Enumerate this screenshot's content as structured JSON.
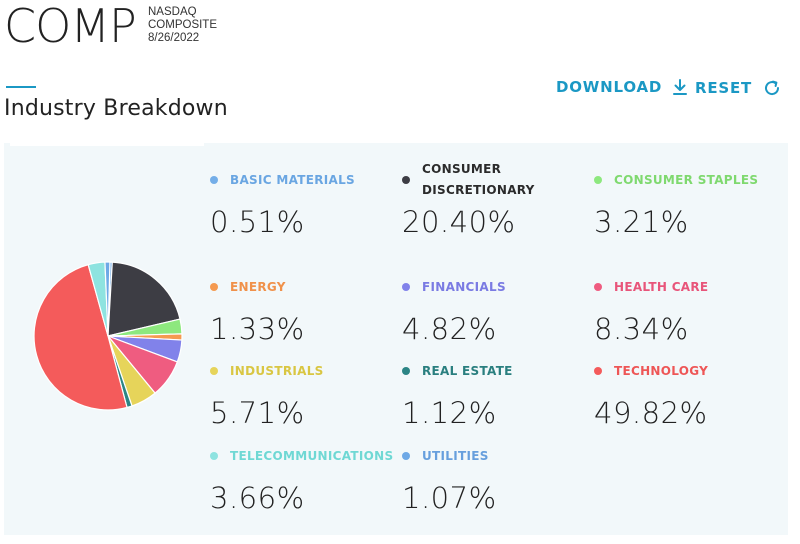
{
  "header": {
    "ticker": "COMP",
    "index_name_line1": "NASDAQ",
    "index_name_line2": "COMPOSITE",
    "date": "8/26/2022"
  },
  "section": {
    "title": "Industry Breakdown"
  },
  "actions": {
    "download_label": "DOWNLOAD",
    "reset_label": "RESET",
    "accent_color": "#1b98c4"
  },
  "chart_data": {
    "type": "pie",
    "title": "Industry Breakdown",
    "unit": "%",
    "slices": [
      {
        "label": "BASIC MATERIALS",
        "value": 0.51,
        "display": "0.51%",
        "color": "#74aee8",
        "label_color": "#6aa6e2"
      },
      {
        "label": "CONSUMER DISCRETIONARY",
        "value": 20.4,
        "display": "20.40%",
        "color": "#3d3d44",
        "label_color": "#2b2b2b"
      },
      {
        "label": "CONSUMER STAPLES",
        "value": 3.21,
        "display": "3.21%",
        "color": "#8de87e",
        "label_color": "#7fd96f"
      },
      {
        "label": "ENERGY",
        "value": 1.33,
        "display": "1.33%",
        "color": "#f59a50",
        "label_color": "#f0914a"
      },
      {
        "label": "FINANCIALS",
        "value": 4.82,
        "display": "4.82%",
        "color": "#8182ea",
        "label_color": "#7a7be3"
      },
      {
        "label": "HEALTH CARE",
        "value": 8.34,
        "display": "8.34%",
        "color": "#ef5c80",
        "label_color": "#e8557a"
      },
      {
        "label": "INDUSTRIALS",
        "value": 5.71,
        "display": "5.71%",
        "color": "#e6d45a",
        "label_color": "#d9c642"
      },
      {
        "label": "REAL ESTATE",
        "value": 1.12,
        "display": "1.12%",
        "color": "#2c8585",
        "label_color": "#2a7f7f"
      },
      {
        "label": "TECHNOLOGY",
        "value": 49.82,
        "display": "49.82%",
        "color": "#f45b5b",
        "label_color": "#ee5656"
      },
      {
        "label": "TELECOMMUNICATIONS",
        "value": 3.66,
        "display": "3.66%",
        "color": "#8ee3e0",
        "label_color": "#6fd8d4"
      },
      {
        "label": "UTILITIES",
        "value": 1.07,
        "display": "1.07%",
        "color": "#6ea9e6",
        "label_color": "#679fdd"
      }
    ]
  }
}
